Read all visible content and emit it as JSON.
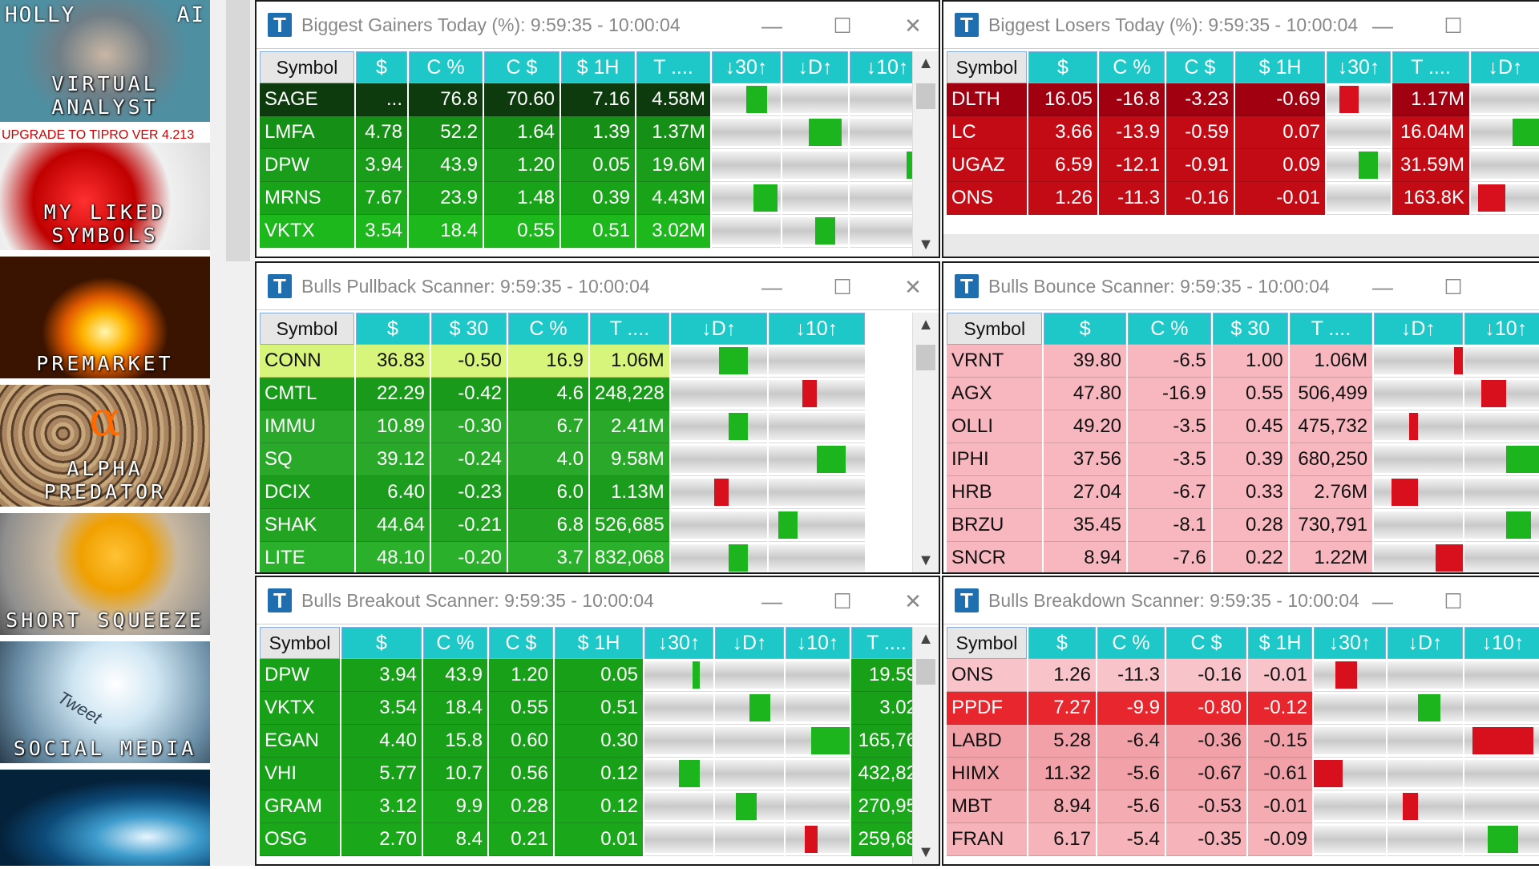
{
  "sidebar": {
    "tiles": [
      {
        "label": "VIRTUAL ANALYST",
        "top_left": "HOLLY",
        "top_right": "AI",
        "banner": ""
      },
      {
        "label": "MY LIKED SYMBOLS",
        "top_left": "",
        "top_right": "",
        "banner": "UPGRADE TO TIPRO VER 4.213"
      },
      {
        "label": "PREMARKET",
        "top_left": "",
        "top_right": "",
        "banner": ""
      },
      {
        "label": "ALPHA PREDATOR",
        "top_left": "",
        "top_right": "",
        "banner": "",
        "glyph": "α"
      },
      {
        "label": "SHORT SQUEEZE",
        "top_left": "",
        "top_right": "",
        "banner": ""
      },
      {
        "label": "SOCIAL MEDIA",
        "top_left": "",
        "top_right": "",
        "banner": "",
        "glyph": "Tweet"
      },
      {
        "label": "",
        "top_left": "",
        "top_right": "",
        "banner": ""
      }
    ]
  },
  "window_controls": {
    "minimize": "—",
    "maximize": "☐",
    "close": "✕",
    "icon": "T"
  },
  "colors": {
    "header_cyan": "#1fc8c8",
    "bull_green": "#1db51d",
    "bear_red": "#c8101a",
    "pink": "#f8b7bf"
  },
  "windows": {
    "gainers": {
      "title": "Biggest Gainers Today (%):  9:59:35 - 10:00:04",
      "headers": [
        "Symbol",
        "$",
        "C %",
        "C $",
        "$ 1H",
        "T ....",
        "↓30↑",
        "↓D↑",
        "↓10↑"
      ],
      "rows": [
        [
          "SAGE",
          "...",
          "76.8",
          "70.60",
          "7.16",
          "4.58M"
        ],
        [
          "LMFA",
          "4.78",
          "52.2",
          "1.64",
          "1.39",
          "1.37M"
        ],
        [
          "DPW",
          "3.94",
          "43.9",
          "1.20",
          "0.05",
          "19.6M"
        ],
        [
          "MRNS",
          "7.67",
          "23.9",
          "1.48",
          "0.39",
          "4.43M"
        ],
        [
          "VKTX",
          "3.54",
          "18.4",
          "0.55",
          "0.51",
          "3.02M"
        ]
      ]
    },
    "losers": {
      "title": "Biggest  Losers Today (%):  9:59:35 - 10:00:04",
      "headers": [
        "Symbol",
        "$",
        "C %",
        "C $",
        "$ 1H",
        "↓30↑",
        "T ....",
        "↓D↑"
      ],
      "rows": [
        [
          "DLTH",
          "16.05",
          "-16.8",
          "-3.23",
          "-0.69",
          "1.17M"
        ],
        [
          "LC",
          "3.66",
          "-13.9",
          "-0.59",
          "0.07",
          "16.04M"
        ],
        [
          "UGAZ",
          "6.59",
          "-12.1",
          "-0.91",
          "0.09",
          "31.59M"
        ],
        [
          "ONS",
          "1.26",
          "-11.3",
          "-0.16",
          "-0.01",
          "163.8K"
        ]
      ]
    },
    "pullback": {
      "title": "Bulls Pullback Scanner:  9:59:35 - 10:00:04",
      "headers": [
        "Symbol",
        "$",
        "$ 30",
        "C %",
        "T ....",
        "↓D↑",
        "↓10↑"
      ],
      "rows": [
        [
          "CONN",
          "36.83",
          "-0.50",
          "16.9",
          "1.06M"
        ],
        [
          "CMTL",
          "22.29",
          "-0.42",
          "4.6",
          "248,228"
        ],
        [
          "IMMU",
          "10.89",
          "-0.30",
          "6.7",
          "2.41M"
        ],
        [
          "SQ",
          "39.12",
          "-0.24",
          "4.0",
          "9.58M"
        ],
        [
          "DCIX",
          "6.40",
          "-0.23",
          "6.0",
          "1.13M"
        ],
        [
          "SHAK",
          "44.64",
          "-0.21",
          "6.8",
          "526,685"
        ],
        [
          "LITE",
          "48.10",
          "-0.20",
          "3.7",
          "832,068"
        ]
      ]
    },
    "bounce": {
      "title": "Bulls Bounce Scanner:  9:59:35 - 10:00:04",
      "headers": [
        "Symbol",
        "$",
        "C %",
        "$ 30",
        "T ....",
        "↓D↑",
        "↓10↑"
      ],
      "rows": [
        [
          "VRNT",
          "39.80",
          "-6.5",
          "1.00",
          "1.06M"
        ],
        [
          "AGX",
          "47.80",
          "-16.9",
          "0.55",
          "506,499"
        ],
        [
          "OLLI",
          "49.20",
          "-3.5",
          "0.45",
          "475,732"
        ],
        [
          "IPHI",
          "37.56",
          "-3.5",
          "0.39",
          "680,250"
        ],
        [
          "HRB",
          "27.04",
          "-6.7",
          "0.33",
          "2.76M"
        ],
        [
          "BRZU",
          "35.45",
          "-8.1",
          "0.28",
          "730,791"
        ],
        [
          "SNCR",
          "8.94",
          "-7.6",
          "0.22",
          "1.22M"
        ]
      ]
    },
    "breakout": {
      "title": "Bulls Breakout Scanner:  9:59:35 - 10:00:04",
      "headers": [
        "Symbol",
        "$",
        "C %",
        "C $",
        "$ 1H",
        "↓30↑",
        "↓D↑",
        "↓10↑",
        "T ...."
      ],
      "rows": [
        [
          "DPW",
          "3.94",
          "43.9",
          "1.20",
          "0.05",
          "19.59"
        ],
        [
          "VKTX",
          "3.54",
          "18.4",
          "0.55",
          "0.51",
          "3.02"
        ],
        [
          "EGAN",
          "4.40",
          "15.8",
          "0.60",
          "0.30",
          "165,76"
        ],
        [
          "VHI",
          "5.77",
          "10.7",
          "0.56",
          "0.12",
          "432,82"
        ],
        [
          "GRAM",
          "3.12",
          "9.9",
          "0.28",
          "0.12",
          "270,95"
        ],
        [
          "OSG",
          "2.70",
          "8.4",
          "0.21",
          "0.01",
          "259,68"
        ]
      ]
    },
    "breakdown": {
      "title": "Bulls Breakdown Scanner:  9:59:35 - 10:00:04",
      "headers": [
        "Symbol",
        "$",
        "C %",
        "C $",
        "$ 1H",
        "↓30↑",
        "↓D↑",
        "↓10↑"
      ],
      "rows": [
        [
          "ONS",
          "1.26",
          "-11.3",
          "-0.16",
          "-0.01"
        ],
        [
          "PPDF",
          "7.27",
          "-9.9",
          "-0.80",
          "-0.12"
        ],
        [
          "LABD",
          "5.28",
          "-6.4",
          "-0.36",
          "-0.15"
        ],
        [
          "HIMX",
          "11.32",
          "-5.6",
          "-0.67",
          "-0.61"
        ],
        [
          "MBT",
          "8.94",
          "-5.6",
          "-0.53",
          "-0.01"
        ],
        [
          "FRAN",
          "6.17",
          "-5.4",
          "-0.35",
          "-0.09"
        ]
      ]
    }
  }
}
